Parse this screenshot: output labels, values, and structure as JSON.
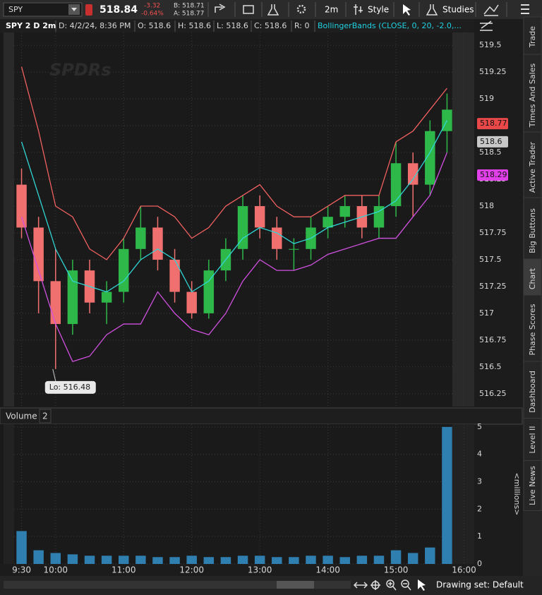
{
  "toolbar": {
    "symbol": "SPY",
    "last": "518.84",
    "change": "-3.32",
    "change_pct": "-0.64%",
    "bid": "B: 518.71",
    "ask": "A: 518.77",
    "interval": "2m",
    "style": "Style",
    "studies": "Studies"
  },
  "info_bar": [
    "SPY 2 D 2m",
    "D: 4/2/24, 8:36 PM",
    "O: 518.6",
    "H: 518.6",
    "L: 518.6",
    "C: 518.6",
    "R: 0",
    "BollingerBands (CLOSE, 0, 20, -2.0,..."
  ],
  "chart_data": [
    {
      "type": "candlestick",
      "x": [
        570,
        585,
        600,
        615,
        630,
        645,
        660,
        675,
        690,
        705,
        720,
        735,
        750,
        765,
        780,
        795,
        810,
        825,
        840,
        855,
        870,
        885,
        900,
        915,
        930,
        945
      ],
      "open": [
        518.2,
        517.8,
        517.3,
        516.9,
        517.4,
        517.1,
        517.2,
        517.6,
        517.8,
        517.5,
        517.2,
        517.0,
        517.4,
        517.6,
        518.0,
        517.8,
        517.6,
        517.6,
        517.8,
        517.9,
        518.0,
        517.8,
        518.0,
        518.4,
        518.2,
        518.7
      ],
      "high": [
        518.35,
        517.9,
        517.6,
        517.5,
        517.5,
        517.3,
        517.7,
        518.0,
        517.9,
        517.6,
        517.3,
        517.5,
        517.7,
        518.1,
        518.1,
        517.9,
        517.7,
        517.9,
        518.0,
        518.1,
        518.1,
        518.1,
        518.6,
        518.5,
        518.8,
        519.05
      ],
      "low": [
        517.7,
        517.0,
        516.48,
        516.8,
        517.0,
        516.9,
        517.1,
        517.5,
        517.4,
        517.1,
        516.95,
        516.95,
        517.3,
        517.5,
        517.7,
        517.5,
        517.4,
        517.5,
        517.7,
        517.8,
        517.7,
        517.7,
        517.9,
        517.9,
        518.1,
        518.5
      ],
      "close": [
        517.8,
        517.3,
        516.9,
        517.4,
        517.1,
        517.2,
        517.6,
        517.8,
        517.5,
        517.2,
        517.0,
        517.4,
        517.6,
        518.0,
        517.8,
        517.6,
        517.6,
        517.8,
        517.9,
        518.0,
        517.8,
        518.0,
        518.4,
        518.2,
        518.7,
        518.9
      ],
      "up_color": "#2fb84a",
      "down_color": "#f07070",
      "series": [
        {
          "color": "#f06060",
          "values": [
            519.3,
            518.7,
            518.0,
            517.9,
            517.6,
            517.5,
            517.7,
            518.0,
            518.0,
            517.9,
            517.7,
            517.8,
            518.0,
            518.1,
            518.2,
            518.0,
            517.9,
            517.9,
            518.0,
            518.1,
            518.1,
            518.1,
            518.6,
            518.7,
            518.9,
            519.1
          ]
        },
        {
          "color": "#30d6d6",
          "values": [
            518.6,
            518.1,
            517.6,
            517.3,
            517.25,
            517.2,
            517.3,
            517.5,
            517.6,
            517.5,
            517.2,
            517.3,
            517.5,
            517.7,
            517.8,
            517.75,
            517.65,
            517.7,
            517.8,
            517.85,
            517.9,
            517.95,
            518.05,
            518.25,
            518.5,
            518.8
          ]
        },
        {
          "color": "#d050e0",
          "values": [
            517.9,
            517.4,
            516.9,
            516.55,
            516.6,
            516.8,
            516.9,
            516.9,
            517.2,
            517.0,
            516.85,
            516.8,
            517.0,
            517.3,
            517.5,
            517.4,
            517.4,
            517.45,
            517.55,
            517.6,
            517.65,
            517.7,
            517.7,
            517.9,
            518.1,
            518.5
          ]
        }
      ],
      "xlim": [
        551,
        969
      ],
      "ylim": [
        516.13,
        519.62
      ],
      "yticks": [
        519.5,
        519.25,
        519,
        518.75,
        518.5,
        518.25,
        518,
        517.75,
        517.5,
        517.25,
        517,
        516.75,
        516.5,
        516.25
      ],
      "xticks": [
        {
          "value": 570,
          "label": "9:30"
        },
        {
          "value": 600,
          "label": "10:00"
        },
        {
          "value": 660,
          "label": "11:00"
        },
        {
          "value": 720,
          "label": "12:00"
        },
        {
          "value": 780,
          "label": "13:00"
        },
        {
          "value": 840,
          "label": "14:00"
        },
        {
          "value": 900,
          "label": "15:00"
        },
        {
          "value": 960,
          "label": "16:00"
        }
      ],
      "price_markers": [
        {
          "value": 518.77,
          "color": "#e84848"
        },
        {
          "value": 518.6,
          "color": "#c8c8c8"
        },
        {
          "value": 518.29,
          "color": "#e040e8"
        }
      ],
      "annotation": {
        "label": "Lo: 516.48",
        "x": 600,
        "y": 516.48
      },
      "grid": true
    },
    {
      "type": "bar",
      "title": "Volume",
      "panel_index": "2",
      "ylabel": "<millions>",
      "color": "#2f7fb0",
      "x": [
        570,
        585,
        600,
        615,
        630,
        645,
        660,
        675,
        690,
        705,
        720,
        735,
        750,
        765,
        780,
        795,
        810,
        825,
        840,
        855,
        870,
        885,
        900,
        915,
        930,
        945
      ],
      "values": [
        1.2,
        0.5,
        0.4,
        0.35,
        0.3,
        0.3,
        0.3,
        0.3,
        0.25,
        0.25,
        0.3,
        0.25,
        0.25,
        0.3,
        0.3,
        0.25,
        0.25,
        0.3,
        0.3,
        0.25,
        0.3,
        0.3,
        0.5,
        0.4,
        0.6,
        5
      ],
      "ylim": [
        0,
        5.1
      ],
      "yticks": [
        5,
        4,
        3,
        2,
        1,
        0
      ],
      "grid": true
    }
  ],
  "side_tabs": [
    "Trade",
    "Times And Sales",
    "Active Trader",
    "Big Buttons",
    "Chart",
    "Phase Scores",
    "Dashboard",
    "Level II",
    "Live News"
  ],
  "footer": {
    "drawing_set": "Drawing set: Default"
  }
}
